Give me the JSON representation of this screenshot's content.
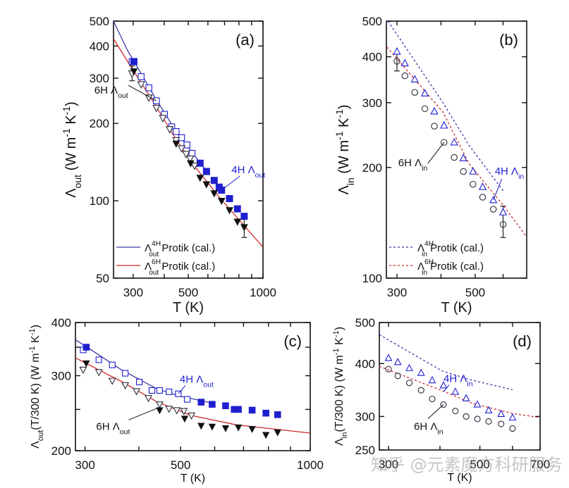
{
  "watermark": "知乎 @元素魔方科研服务",
  "colors": {
    "blue": "#1f1fd0",
    "blue_line": "#3a3aa8",
    "red_line": "#cc2a2a",
    "black": "#111111",
    "dark_marker": "#2a2a3a"
  },
  "chart_data": [
    {
      "panel": "a",
      "type": "scatter",
      "panel_label": "(a)",
      "xlabel": "T (K)",
      "ylabel": "Λout (W m-1 K-1)",
      "xscale": "log",
      "yscale": "log",
      "xlim": [
        250,
        1000
      ],
      "ylim": [
        50,
        500
      ],
      "xticks_labeled": [
        300,
        500,
        1000
      ],
      "xticks_minor": [
        400,
        600,
        700,
        800,
        900
      ],
      "yticks_labeled": [
        50,
        100,
        200,
        300,
        400,
        500
      ],
      "annotations": [
        {
          "text": "6H",
          "sub": "out",
          "color": "black",
          "points_to": [
            372,
            245
          ]
        },
        {
          "text": "4H",
          "sub": "out",
          "color": "blue",
          "points_to": [
            681,
            110
          ]
        }
      ],
      "legend": {
        "placement": "bottom-left",
        "entries": [
          {
            "label": "Protik (cal.)",
            "symbol": "Λ",
            "sup": "4H",
            "sub": "out",
            "color": "blue",
            "style": "solid"
          },
          {
            "label": "Protik (cal.)",
            "symbol": "Λ",
            "sup": "6H",
            "sub": "out",
            "color": "red",
            "style": "solid"
          }
        ]
      },
      "series": [
        {
          "name": "4H Λout (open)",
          "marker": "square-open",
          "color": "blue",
          "x": [
            297,
            323,
            347,
            372,
            401,
            429,
            447,
            470,
            494,
            518
          ],
          "y": [
            348,
            304,
            275,
            245,
            217,
            194,
            186,
            176,
            165,
            153
          ]
        },
        {
          "name": "4H Λout (filled)",
          "marker": "square-filled",
          "color": "blue",
          "x": [
            302,
            558,
            592,
            636,
            666,
            681,
            733,
            789,
            840
          ],
          "y": [
            348,
            140,
            130,
            120,
            113,
            110,
            102,
            93,
            87
          ]
        },
        {
          "name": "6H Λout (open)",
          "marker": "triangle-down-open",
          "color": "dark",
          "x": [
            297,
            323,
            347,
            372,
            395,
            421,
            447,
            470,
            490,
            509,
            530
          ],
          "y": [
            313,
            284,
            252,
            230,
            210,
            190,
            172,
            160,
            152,
            146,
            137
          ]
        },
        {
          "name": "6H Λout (filled)",
          "marker": "triangle-down-filled",
          "color": "dark",
          "x": [
            302,
            447,
            511,
            558,
            592,
            636,
            681,
            733,
            789,
            840
          ],
          "y": [
            319,
            167,
            140,
            123,
            116,
            107,
            100,
            92,
            83,
            79
          ]
        },
        {
          "name": "Λout 4H Protik (cal.)",
          "line": "solid",
          "color": "blue",
          "x": [
            250,
            284,
            302,
            364,
            439,
            496,
            590
          ],
          "y": [
            500,
            386,
            349,
            256,
            191,
            163,
            131
          ]
        },
        {
          "name": "Λout 6H Protik (cal.)",
          "line": "solid",
          "color": "red",
          "x": [
            250,
            284,
            322,
            364,
            439,
            528,
            674,
            1000
          ],
          "y": [
            427,
            350,
            289,
            240,
            178,
            137,
            102,
            66
          ]
        }
      ],
      "error_bars": [
        {
          "x": 297,
          "y": 313,
          "low": 293,
          "high": 335
        },
        {
          "x": 840,
          "y": 79,
          "low": 72,
          "high": 87
        }
      ]
    },
    {
      "panel": "b",
      "type": "scatter",
      "panel_label": "(b)",
      "xlabel": "T (K)",
      "ylabel": "Λin (W m-1 K-1)",
      "xscale": "log",
      "yscale": "log",
      "xlim": [
        280,
        700
      ],
      "ylim": [
        100,
        500
      ],
      "xticks_labeled": [
        300,
        500
      ],
      "xticks_minor": [
        400,
        600
      ],
      "yticks_labeled": [
        100,
        200,
        300,
        400,
        500
      ],
      "annotations": [
        {
          "text": "6H",
          "sub": "in",
          "color": "black",
          "points_to": [
            408,
            234
          ]
        },
        {
          "text": "4H",
          "sub": "in",
          "color": "blue",
          "points_to": [
            563,
            163
          ]
        }
      ],
      "legend": {
        "placement": "bottom-left",
        "entries": [
          {
            "label": "Protik (cal.)",
            "symbol": "Λ",
            "sup": "4H",
            "sub": "in",
            "color": "blue",
            "style": "dashed"
          },
          {
            "label": "Protik (cal.)",
            "symbol": "Λ",
            "sup": "6H",
            "sub": "in",
            "color": "red",
            "style": "dashed"
          }
        ]
      },
      "series": [
        {
          "name": "4H Λin",
          "marker": "triangle-up-open",
          "color": "blue",
          "x": [
            300,
            316,
            337,
            360,
            383,
            408,
            436,
            463,
            493,
            525,
            563,
            600
          ],
          "y": [
            413,
            384,
            347,
            318,
            284,
            260,
            234,
            212,
            195,
            177,
            163,
            151
          ]
        },
        {
          "name": "6H Λin",
          "marker": "circle-open",
          "color": "dark",
          "x": [
            300,
            316,
            337,
            360,
            383,
            408,
            436,
            463,
            493,
            525,
            563,
            600
          ],
          "y": [
            389,
            355,
            320,
            289,
            259,
            234,
            213,
            195,
            180,
            166,
            154,
            140
          ]
        },
        {
          "name": "Λin 4H Protik (cal.)",
          "line": "dashed",
          "color": "blue",
          "x": [
            283,
            405,
            480,
            600
          ],
          "y": [
            500,
            300,
            230,
            173
          ]
        },
        {
          "name": "Λin 6H Protik (cal.)",
          "line": "dashed",
          "color": "red",
          "x": [
            281,
            405,
            480,
            600,
            702
          ],
          "y": [
            425,
            283,
            205,
            158,
            129
          ]
        }
      ],
      "error_bars": [
        {
          "x": 300,
          "y": 389,
          "low": 366,
          "high": 410
        },
        {
          "x": 600,
          "y": 140,
          "low": 129,
          "high": 157
        }
      ]
    },
    {
      "panel": "c",
      "type": "scatter",
      "panel_label": "(c)",
      "xlabel": "T (K)",
      "ylabel": "Λout(T/300 K) (W m-1 K-1)",
      "xscale": "log",
      "yscale": "log",
      "xlim": [
        285,
        1000
      ],
      "ylim": [
        200,
        400
      ],
      "xticks_labeled": [
        300,
        500,
        1000
      ],
      "xticks_minor": [
        400,
        600,
        700,
        800,
        900
      ],
      "yticks_labeled": [
        200,
        300,
        400
      ],
      "yticks_minor": [
        250,
        350
      ],
      "annotations": [
        {
          "text": "4H",
          "sub": "out",
          "color": "blue",
          "points_to": [
            494,
            272
          ]
        },
        {
          "text": "6H",
          "sub": "out",
          "color": "black",
          "points_to": [
            447,
            253
          ]
        }
      ],
      "series": [
        {
          "name": "4H Λout (open)",
          "marker": "square-open",
          "color": "blue",
          "x": [
            297,
            323,
            347,
            372,
            401,
            429,
            447,
            470,
            494,
            518
          ],
          "y": [
            345,
            327,
            318,
            304,
            290,
            277,
            277,
            275,
            272,
            264
          ]
        },
        {
          "name": "4H Λout (filled)",
          "marker": "square-filled",
          "color": "blue",
          "x": [
            302,
            558,
            592,
            636,
            666,
            681,
            733,
            789,
            840
          ],
          "y": [
            350,
            260,
            257,
            255,
            250,
            250,
            249,
            245,
            243
          ]
        },
        {
          "name": "6H Λout (open)",
          "marker": "triangle-down-open",
          "color": "dark",
          "x": [
            297,
            323,
            347,
            372,
            395,
            421,
            447,
            470,
            490,
            509,
            530
          ],
          "y": [
            310,
            306,
            292,
            285,
            276,
            266,
            257,
            251,
            249,
            248,
            242
          ]
        },
        {
          "name": "6H Λout (filled)",
          "marker": "triangle-down-filled",
          "color": "dark",
          "x": [
            302,
            447,
            511,
            558,
            592,
            636,
            681,
            733,
            789,
            840
          ],
          "y": [
            321,
            249,
            238,
            229,
            228,
            226,
            227,
            225,
            218,
            221
          ]
        },
        {
          "name": "4H fit",
          "line": "solid",
          "color": "blue",
          "x": [
            284,
            302,
            364,
            439,
            496,
            599
          ],
          "y": [
            365,
            351,
            310,
            280,
            269,
            258
          ]
        },
        {
          "name": "6H fit",
          "line": "solid",
          "color": "red",
          "x": [
            284,
            322,
            364,
            439,
            528,
            674,
            1000
          ],
          "y": [
            331,
            310,
            291,
            261,
            242,
            230,
            220
          ]
        }
      ]
    },
    {
      "panel": "d",
      "type": "scatter",
      "panel_label": "(d)",
      "xlabel": "T (K)",
      "ylabel": "Λin(T/300 K) (W m-1 K-1)",
      "xscale": "log",
      "yscale": "log",
      "xlim": [
        285,
        700
      ],
      "ylim": [
        250,
        500
      ],
      "xticks_labeled": [
        300,
        500,
        700
      ],
      "xticks_minor": [
        400,
        600
      ],
      "yticks_labeled": [
        250,
        300,
        400,
        500
      ],
      "annotations": [
        {
          "text": "4H",
          "sub": "in",
          "color": "blue",
          "points_to": [
            408,
            343
          ]
        },
        {
          "text": "6H",
          "sub": "in",
          "color": "black",
          "points_to": [
            408,
            320
          ]
        }
      ],
      "series": [
        {
          "name": "4H Λin",
          "marker": "triangle-up-open",
          "color": "blue",
          "x": [
            300,
            316,
            337,
            360,
            383,
            408,
            436,
            463,
            493,
            525,
            563,
            600
          ],
          "y": [
            412,
            403,
            390,
            380,
            365,
            355,
            343,
            331,
            320,
            310,
            304,
            298
          ]
        },
        {
          "name": "6H Λin",
          "marker": "circle-open",
          "color": "dark",
          "x": [
            300,
            316,
            337,
            360,
            383,
            408,
            436,
            463,
            493,
            525,
            563,
            600
          ],
          "y": [
            388,
            374,
            360,
            346,
            330,
            320,
            309,
            300,
            296,
            292,
            288,
            281
          ]
        },
        {
          "name": "4H Protik (cal.)",
          "line": "dashed",
          "color": "blue",
          "x": [
            285,
            405,
            480,
            600
          ],
          "y": [
            468,
            384,
            365,
            347
          ]
        },
        {
          "name": "6H Protik (cal.)",
          "line": "dashed",
          "color": "red",
          "x": [
            285,
            405,
            480,
            600,
            700
          ],
          "y": [
            394,
            345,
            322,
            305,
            298
          ]
        }
      ]
    }
  ]
}
